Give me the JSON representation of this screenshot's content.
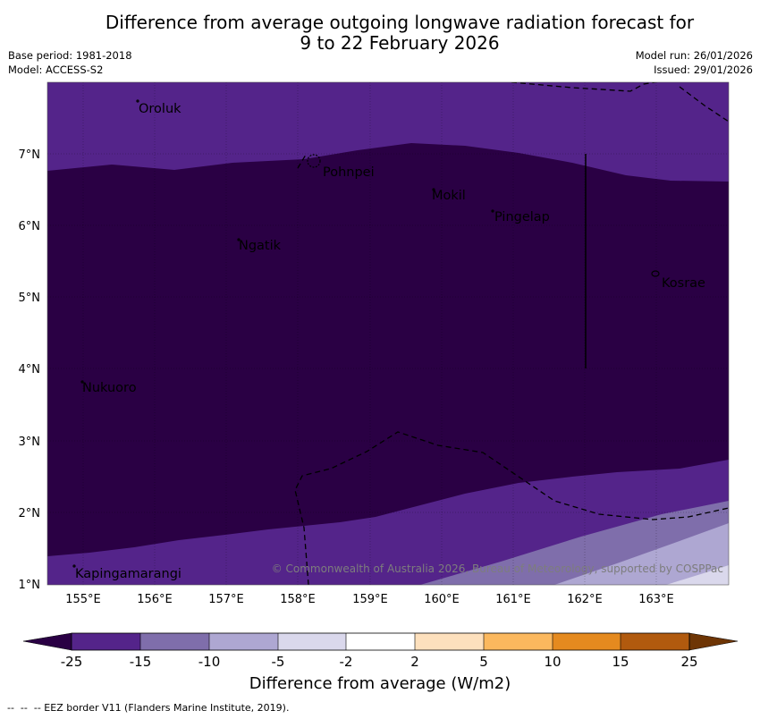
{
  "title": {
    "line1": "Difference from average outgoing longwave radiation forecast for",
    "line2": "9 to 22 February 2026"
  },
  "meta": {
    "base_period": "Base period: 1981-2018",
    "model": "Model: ACCESS-S2",
    "model_run": "Model run: 26/01/2026",
    "issued": "Issued: 29/01/2026"
  },
  "axes": {
    "lon_labels": [
      "155°E",
      "156°E",
      "157°E",
      "158°E",
      "159°E",
      "160°E",
      "161°E",
      "162°E",
      "163°E"
    ],
    "lat_labels": [
      "7°N",
      "6°N",
      "5°N",
      "4°N",
      "3°N",
      "2°N",
      "1°N"
    ]
  },
  "places": [
    "Oroluk",
    "Pohnpei",
    "Mokil",
    "Pingelap",
    "Ngatik",
    "Kosrae",
    "Nukuoro",
    "Kapingamarangi"
  ],
  "copyright": "© Commonwealth of Australia 2026, Bureau of Meteorology, supported by COSPPac",
  "legend": {
    "ticks": [
      "-25",
      "-15",
      "-10",
      "-5",
      "-2",
      "2",
      "5",
      "10",
      "15",
      "25"
    ],
    "colors": [
      "#2a0044",
      "#54248a",
      "#7f6eab",
      "#aea7d2",
      "#dad8ec",
      "#ffffff",
      "#fde0bd",
      "#fbb85e",
      "#e58a1f",
      "#b15a0e",
      "#6e3505"
    ],
    "title": "Difference from average (W/m2)"
  },
  "footer": "--  --  -- EEZ border V11 (Flanders Marine Institute, 2019)."
}
